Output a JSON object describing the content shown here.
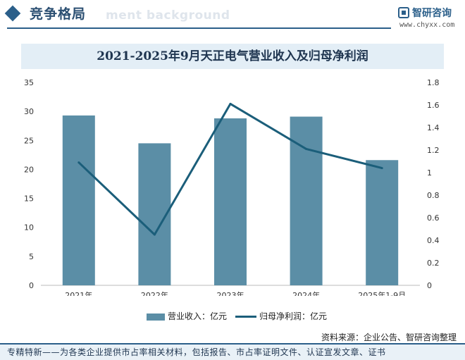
{
  "header": {
    "section_title": "竞争格局",
    "ghost_text": "ment background",
    "logo_name": "智研咨询",
    "logo_url": "www.chyxx.com"
  },
  "chart_data": {
    "type": "bar",
    "title": "2021-2025年9月天正电气营业收入及归母净利润",
    "categories": [
      "2021年",
      "2022年",
      "2023年",
      "2024年",
      "2025年1-9月"
    ],
    "series": [
      {
        "name": "营业收入：亿元",
        "type": "bar",
        "axis": "left",
        "values": [
          29.3,
          24.5,
          28.8,
          29.1,
          21.6
        ]
      },
      {
        "name": "归母净利润：亿元",
        "type": "line",
        "axis": "right",
        "values": [
          1.09,
          0.45,
          1.61,
          1.21,
          1.04
        ]
      }
    ],
    "y_left": {
      "ylim": [
        0,
        35
      ],
      "ticks": [
        "0",
        "5",
        "10",
        "15",
        "20",
        "25",
        "30",
        "35"
      ]
    },
    "y_right": {
      "ylim": [
        0,
        1.8
      ],
      "ticks": [
        "0",
        "0.2",
        "0.4",
        "0.6",
        "0.8",
        "1",
        "1.2",
        "1.4",
        "1.6",
        "1.8"
      ]
    },
    "grid": false,
    "legend_position": "bottom",
    "colors": {
      "bar": "#5b8ea6",
      "line": "#1b5e7a"
    }
  },
  "source": "资料来源：企业公告、智研咨询整理",
  "footer": "专精特新——为各类企业提供市占率相关材料，包括报告、市占率证明文件、认证宣发文章、证书"
}
